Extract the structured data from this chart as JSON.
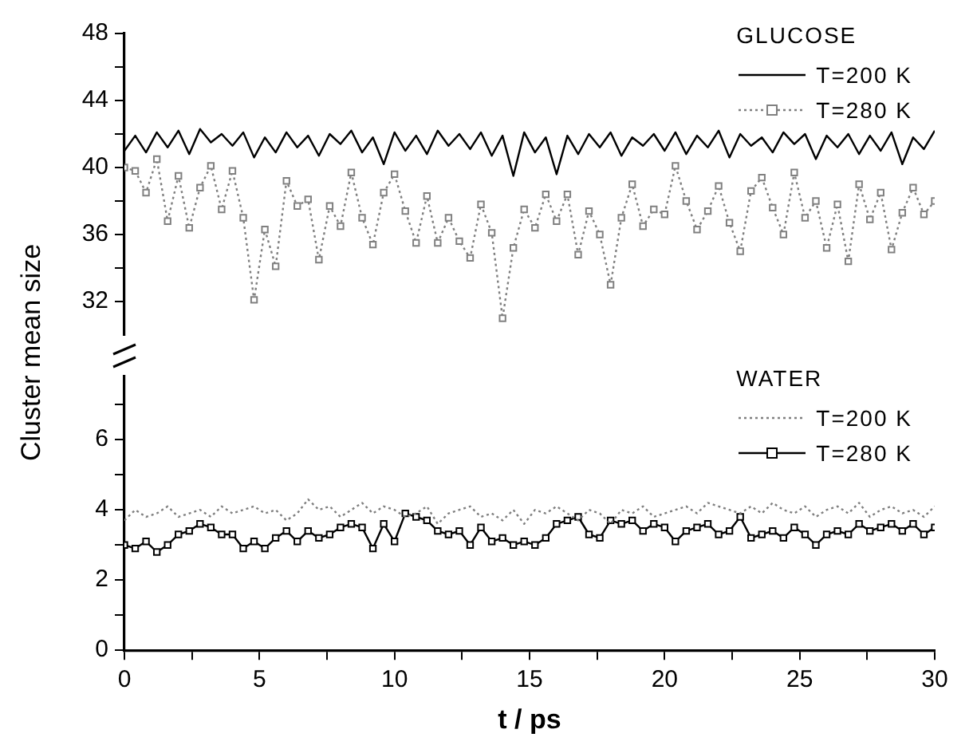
{
  "chart_data": [
    {
      "type": "line",
      "ylabel": "Cluster mean size",
      "legend_title": "GLUCOSE",
      "legend": "top right",
      "grid": false,
      "tick_labels": "y",
      "xlim": [
        0,
        30
      ],
      "ylim": [
        30,
        48
      ],
      "yticks": [
        32,
        {
          "value": 34,
          "label": null
        },
        36,
        {
          "value": 38,
          "label": null
        },
        40,
        {
          "value": 42,
          "label": null
        },
        44,
        {
          "value": 46,
          "label": null
        },
        48
      ],
      "x": [
        0,
        0.4,
        0.8,
        1.2,
        1.6,
        2,
        2.4,
        2.8,
        3.2,
        3.6,
        4,
        4.4,
        4.8,
        5.2,
        5.6,
        6,
        6.4,
        6.8,
        7.2,
        7.6,
        8,
        8.4,
        8.8,
        9.2,
        9.6,
        10,
        10.4,
        10.8,
        11.2,
        11.6,
        12,
        12.4,
        12.8,
        13.2,
        13.6,
        14,
        14.4,
        14.8,
        15.2,
        15.6,
        16,
        16.4,
        16.8,
        17.2,
        17.6,
        18,
        18.4,
        18.8,
        19.2,
        19.6,
        20,
        20.4,
        20.8,
        21.2,
        21.6,
        22,
        22.4,
        22.8,
        23.2,
        23.6,
        24,
        24.4,
        24.8,
        25.2,
        25.6,
        26,
        26.4,
        26.8,
        27.2,
        27.6,
        28,
        28.4,
        28.8,
        29.2,
        29.6,
        30
      ],
      "series": [
        {
          "name": "T=200 K",
          "color": "#000000",
          "marker": "none",
          "line_style": "solid",
          "values": [
            41.0,
            41.9,
            40.9,
            42.1,
            41.2,
            42.2,
            40.8,
            42.3,
            41.5,
            42.0,
            41.3,
            42.1,
            40.6,
            41.8,
            40.9,
            42.1,
            41.2,
            41.9,
            40.7,
            42.0,
            41.4,
            42.2,
            40.9,
            41.8,
            40.2,
            42.1,
            41.0,
            41.9,
            40.8,
            42.2,
            41.3,
            42.0,
            41.1,
            42.1,
            40.7,
            41.9,
            39.5,
            42.1,
            40.9,
            41.8,
            39.6,
            41.9,
            40.8,
            42.0,
            41.2,
            42.1,
            40.7,
            41.8,
            41.3,
            42.0,
            41.0,
            42.1,
            40.8,
            41.9,
            41.2,
            42.2,
            40.6,
            42.0,
            41.3,
            41.8,
            40.9,
            42.1,
            41.4,
            42.0,
            40.5,
            41.9,
            41.2,
            42.0,
            40.8,
            41.9,
            41.0,
            42.1,
            40.2,
            41.8,
            41.1,
            42.2
          ]
        },
        {
          "name": "T=280 K",
          "color": "#808080",
          "marker": "square",
          "line_style": "dotted",
          "values": [
            40.0,
            39.8,
            38.5,
            40.5,
            36.8,
            39.5,
            36.4,
            38.8,
            40.1,
            37.5,
            39.8,
            37.0,
            32.1,
            36.3,
            34.1,
            39.2,
            37.7,
            38.1,
            34.5,
            37.7,
            36.5,
            39.7,
            37.0,
            35.4,
            38.5,
            39.6,
            37.4,
            35.5,
            38.3,
            35.5,
            37.0,
            35.6,
            34.6,
            37.8,
            36.1,
            31.0,
            35.2,
            37.5,
            36.4,
            38.4,
            36.8,
            38.4,
            34.8,
            37.4,
            36.0,
            33.0,
            37.0,
            39.0,
            36.5,
            37.5,
            37.2,
            40.1,
            38.0,
            36.3,
            37.4,
            38.9,
            36.7,
            35.0,
            38.6,
            39.4,
            37.6,
            36.0,
            39.7,
            37.0,
            38.0,
            35.2,
            37.8,
            34.4,
            39.0,
            36.9,
            38.5,
            35.1,
            37.3,
            38.8,
            37.2,
            38.0
          ]
        }
      ]
    },
    {
      "type": "line",
      "xlabel": "t / ps",
      "legend_title": "WATER",
      "legend": "top right",
      "grid": false,
      "xlim": [
        0,
        30
      ],
      "xticks": [
        0,
        {
          "value": 2.5,
          "label": null
        },
        5,
        {
          "value": 7.5,
          "label": null
        },
        10,
        {
          "value": 12.5,
          "label": null
        },
        15,
        {
          "value": 17.5,
          "label": null
        },
        20,
        {
          "value": 22.5,
          "label": null
        },
        25,
        {
          "value": 27.5,
          "label": null
        },
        30
      ],
      "ylim": [
        0,
        7.8
      ],
      "yticks": [
        0,
        {
          "value": 1,
          "label": null
        },
        2,
        {
          "value": 3,
          "label": null
        },
        4,
        {
          "value": 5,
          "label": null
        },
        6,
        {
          "value": 7,
          "label": null
        }
      ],
      "x": [
        0,
        0.4,
        0.8,
        1.2,
        1.6,
        2,
        2.4,
        2.8,
        3.2,
        3.6,
        4,
        4.4,
        4.8,
        5.2,
        5.6,
        6,
        6.4,
        6.8,
        7.2,
        7.6,
        8,
        8.4,
        8.8,
        9.2,
        9.6,
        10,
        10.4,
        10.8,
        11.2,
        11.6,
        12,
        12.4,
        12.8,
        13.2,
        13.6,
        14,
        14.4,
        14.8,
        15.2,
        15.6,
        16,
        16.4,
        16.8,
        17.2,
        17.6,
        18,
        18.4,
        18.8,
        19.2,
        19.6,
        20,
        20.4,
        20.8,
        21.2,
        21.6,
        22,
        22.4,
        22.8,
        23.2,
        23.6,
        24,
        24.4,
        24.8,
        25.2,
        25.6,
        26,
        26.4,
        26.8,
        27.2,
        27.6,
        28,
        28.4,
        28.8,
        29.2,
        29.6,
        30
      ],
      "series": [
        {
          "name": "T=200 K",
          "color": "#808080",
          "marker": "none",
          "line_style": "dotted",
          "values": [
            3.7,
            4.0,
            3.8,
            3.9,
            4.1,
            3.8,
            3.9,
            4.0,
            3.8,
            4.1,
            3.9,
            4.0,
            4.1,
            3.9,
            4.0,
            3.7,
            3.9,
            4.3,
            4.0,
            4.1,
            3.8,
            4.0,
            4.2,
            3.9,
            4.1,
            4.0,
            3.8,
            3.9,
            4.1,
            3.6,
            3.9,
            4.0,
            4.1,
            3.8,
            3.9,
            3.7,
            4.0,
            3.6,
            4.0,
            3.9,
            4.1,
            3.9,
            3.7,
            4.0,
            3.9,
            3.6,
            4.0,
            3.9,
            4.1,
            3.8,
            3.9,
            4.0,
            4.1,
            3.9,
            4.2,
            4.1,
            4.0,
            3.9,
            4.1,
            3.9,
            4.2,
            4.0,
            3.9,
            4.1,
            3.8,
            4.0,
            4.1,
            3.9,
            4.2,
            3.8,
            4.0,
            4.1,
            3.9,
            4.0,
            3.8,
            4.1
          ]
        },
        {
          "name": "T=280 K",
          "color": "#000000",
          "marker": "square",
          "line_style": "solid",
          "values": [
            3.0,
            2.9,
            3.1,
            2.8,
            3.0,
            3.3,
            3.4,
            3.6,
            3.5,
            3.3,
            3.3,
            2.9,
            3.1,
            2.9,
            3.2,
            3.4,
            3.1,
            3.4,
            3.2,
            3.3,
            3.5,
            3.6,
            3.5,
            2.9,
            3.6,
            3.1,
            3.9,
            3.8,
            3.7,
            3.4,
            3.3,
            3.4,
            3.0,
            3.5,
            3.1,
            3.2,
            3.0,
            3.1,
            3.0,
            3.2,
            3.6,
            3.7,
            3.8,
            3.3,
            3.2,
            3.7,
            3.6,
            3.7,
            3.4,
            3.6,
            3.5,
            3.1,
            3.4,
            3.5,
            3.6,
            3.3,
            3.4,
            3.8,
            3.2,
            3.3,
            3.4,
            3.2,
            3.5,
            3.3,
            3.0,
            3.3,
            3.4,
            3.3,
            3.6,
            3.4,
            3.5,
            3.6,
            3.4,
            3.6,
            3.3,
            3.5
          ]
        }
      ]
    }
  ]
}
